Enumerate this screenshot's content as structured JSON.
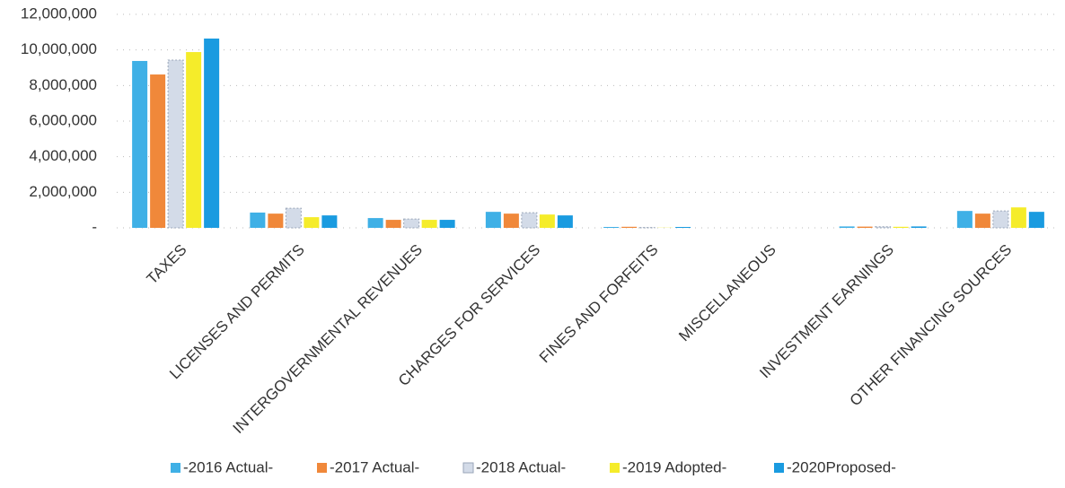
{
  "chart_data": {
    "type": "bar",
    "categories": [
      "TAXES",
      "LICENSES AND PERMITS",
      "INTERGOVERNMENTAL REVENUES",
      "CHARGES FOR SERVICES",
      "FINES AND FORFEITS",
      "MISCELLANEOUS",
      "INVESTMENT EARNINGS",
      "OTHER FINANCING SOURCES"
    ],
    "series": [
      {
        "name": "-2016 Actual-",
        "color": "#3fb0e6",
        "values": [
          9380000,
          860000,
          550000,
          900000,
          50000,
          0,
          80000,
          950000
        ]
      },
      {
        "name": "-2017 Actual-",
        "color": "#f0883a",
        "values": [
          8620000,
          800000,
          450000,
          800000,
          60000,
          0,
          70000,
          800000
        ]
      },
      {
        "name": "-2018 Actual-",
        "color": "#d3dbe8",
        "values": [
          9430000,
          1100000,
          500000,
          850000,
          20000,
          0,
          60000,
          950000
        ]
      },
      {
        "name": "-2019 Adopted-",
        "color": "#f5ec2a",
        "values": [
          9880000,
          600000,
          450000,
          750000,
          10000,
          0,
          60000,
          1150000
        ]
      },
      {
        "name": "-2020Proposed-",
        "color": "#1a9be0",
        "values": [
          10640000,
          700000,
          450000,
          700000,
          50000,
          0,
          80000,
          900000
        ]
      }
    ],
    "ylim": [
      0,
      12000000
    ],
    "yticks": [
      {
        "value": 0,
        "label": "-"
      },
      {
        "value": 2000000,
        "label": "2,000,000"
      },
      {
        "value": 4000000,
        "label": "4,000,000"
      },
      {
        "value": 6000000,
        "label": "6,000,000"
      },
      {
        "value": 8000000,
        "label": "8,000,000"
      },
      {
        "value": 10000000,
        "label": "10,000,000"
      },
      {
        "value": 12000000,
        "label": "12,000,000"
      }
    ],
    "grid": true
  }
}
